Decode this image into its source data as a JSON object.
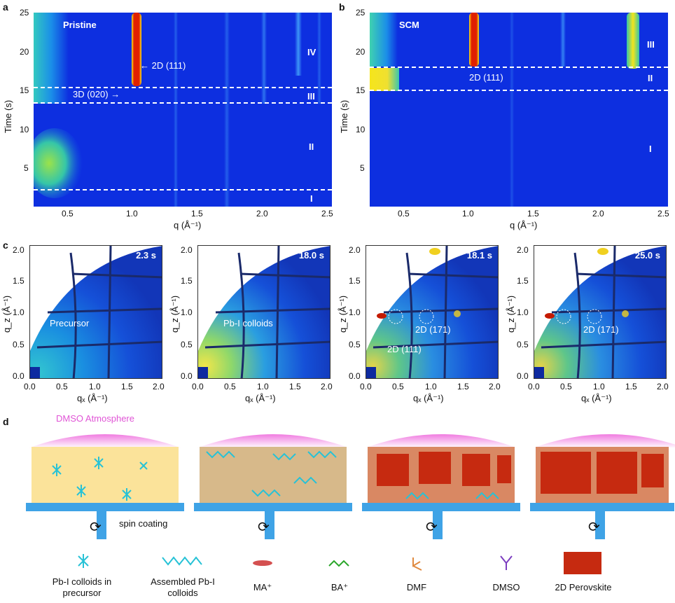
{
  "panels": {
    "a": {
      "letter": "a",
      "title": "Pristine",
      "xlabel": "q (Å⁻¹)",
      "ylabel": "Time (s)",
      "xticks": [
        "0.5",
        "1.0",
        "1.5",
        "2.0",
        "2.5"
      ],
      "yticks": [
        "5",
        "10",
        "15",
        "20",
        "25"
      ],
      "stages": [
        "IV",
        "III",
        "II",
        "I"
      ],
      "annot_2d": "2D (111)",
      "annot_3d": "3D (020)",
      "stage_boundaries_s": [
        2.3,
        13.5,
        15.5
      ]
    },
    "b": {
      "letter": "b",
      "title": "SCM",
      "xlabel": "q (Å⁻¹)",
      "ylabel": "Time (s)",
      "xticks": [
        "0.5",
        "1.0",
        "1.5",
        "2.0",
        "2.5"
      ],
      "yticks": [
        "5",
        "10",
        "15",
        "20",
        "25"
      ],
      "stages": [
        "III",
        "II",
        "I"
      ],
      "annot_2d": "2D (111)",
      "stage_boundaries_s": [
        15.2,
        18.1
      ]
    },
    "c": {
      "letter": "c",
      "xlabel": "qₓ (Å⁻¹)",
      "ylabel": "q_z (Å⁻¹)",
      "xticks": [
        "0.0",
        "0.5",
        "1.0",
        "1.5",
        "2.0"
      ],
      "yticks": [
        "0.0",
        "0.5",
        "1.0",
        "1.5",
        "2.0"
      ],
      "frames": [
        {
          "time": "2.3 s",
          "annot": "Precursor"
        },
        {
          "time": "18.0 s",
          "annot": "Pb-I colloids"
        },
        {
          "time": "18.1 s",
          "annot1": "2D (111)",
          "annot2": "2D (171)"
        },
        {
          "time": "25.0 s",
          "annot2": "2D (171)"
        }
      ]
    },
    "d": {
      "letter": "d",
      "atmosphere": "DMSO Atmosphere",
      "spin": "spin coating",
      "legend": [
        {
          "label": "Pb-I colloids in precursor"
        },
        {
          "label": "Assembled Pb-I colloids"
        },
        {
          "label": "MA⁺"
        },
        {
          "label": "BA⁺"
        },
        {
          "label": "DMF"
        },
        {
          "label": "DMSO"
        },
        {
          "label": "2D Perovskite"
        }
      ]
    }
  },
  "colors": {
    "heat_bg": "#0d2fe0",
    "hot": "#d40000",
    "film_precursor": "#fbe39a",
    "film_colloid": "#d7b98a",
    "film_perov": "#d98863",
    "substrate": "#3fa3e6",
    "atmosphere": "#f27fe0",
    "crystal": "#c62a10",
    "colloid": "#27c2d6"
  }
}
